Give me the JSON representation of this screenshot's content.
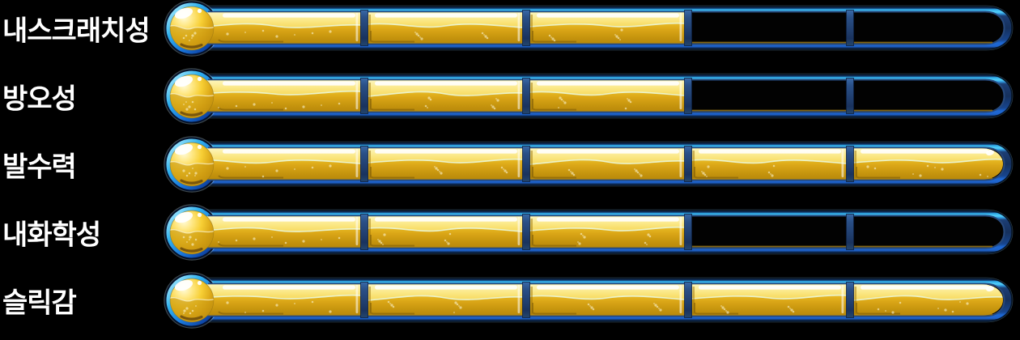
{
  "page": {
    "background": "#000000",
    "label_color": "#ffffff"
  },
  "chart_data": {
    "type": "bar",
    "subtype": "segmented-thermometer-gauge",
    "orientation": "horizontal",
    "title": "",
    "xlabel": "",
    "ylabel": "",
    "legend": false,
    "grid": false,
    "categories": [
      "내스크래치성",
      "방오성",
      "발수력",
      "내화학성",
      "슬릭감"
    ],
    "values": [
      3,
      3,
      5,
      3,
      5
    ],
    "value_max": 5,
    "segments_per_bar": 5,
    "colors": {
      "fill_gold_light": "#fdf6bd",
      "fill_gold": "#eec027",
      "fill_gold_dark": "#b8880a",
      "gloss_white": "#ffffff",
      "wave_line": "#e9f9e2",
      "tube_cyan": "#55d2fa",
      "tube_blue_bottom": "#1e68d4",
      "tube_navy": "#16305c",
      "divider_navy": "#1a335e",
      "ring_light": "#d6f4fd",
      "ring_deep": "#0a2f86",
      "empty_segment": "#020202",
      "residue_gold": "#8a6a14",
      "bulb_shadow_brown": "#6b4a0c"
    }
  }
}
